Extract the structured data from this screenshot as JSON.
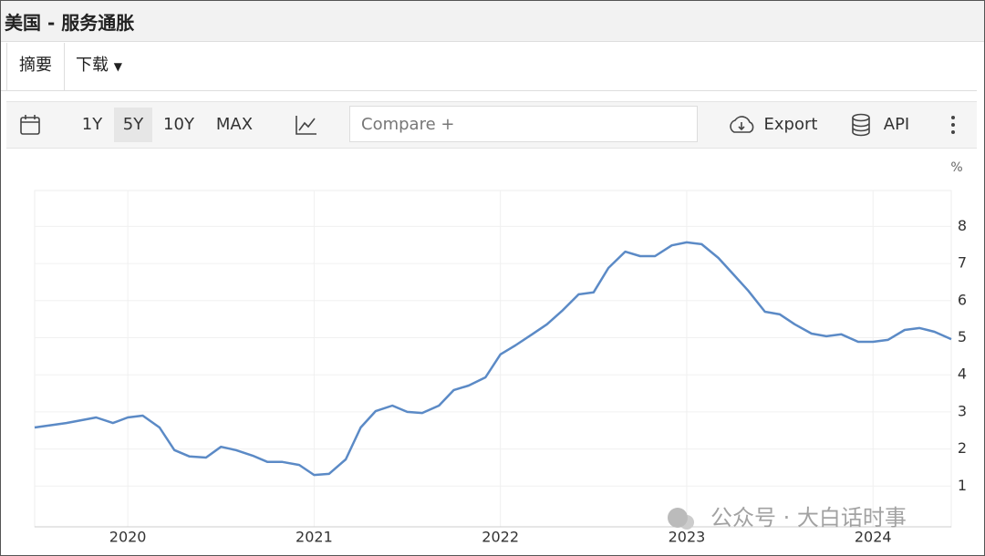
{
  "header": {
    "title": "美国 - 服务通胀"
  },
  "tabs": [
    "摘要",
    "下载"
  ],
  "toolbar": {
    "ranges": [
      "1Y",
      "5Y",
      "10Y",
      "MAX"
    ],
    "compare": "Compare +",
    "export": "Export",
    "api": "API"
  },
  "watermark": "公众号 · 大白话时事",
  "chart_data": {
    "type": "line",
    "unit": "%",
    "x": [
      2019.5,
      2019.67,
      2019.83,
      2019.92,
      2020.0,
      2020.08,
      2020.17,
      2020.25,
      2020.33,
      2020.42,
      2020.5,
      2020.58,
      2020.67,
      2020.75,
      2020.83,
      2020.92,
      2021.0,
      2021.08,
      2021.17,
      2021.25,
      2021.33,
      2021.42,
      2021.5,
      2021.58,
      2021.67,
      2021.75,
      2021.83,
      2021.92,
      2022.0,
      2022.08,
      2022.17,
      2022.25,
      2022.33,
      2022.42,
      2022.5,
      2022.58,
      2022.67,
      2022.75,
      2022.83,
      2022.92,
      2023.0,
      2023.08,
      2023.17,
      2023.25,
      2023.33,
      2023.42,
      2023.5,
      2023.58,
      2023.67,
      2023.75,
      2023.83,
      2023.92,
      2024.0,
      2024.08,
      2024.17,
      2024.25,
      2024.33,
      2024.42
    ],
    "series": [
      {
        "name": "服务通胀",
        "color": "#5b8ac6",
        "values": [
          2.58,
          2.7,
          2.85,
          2.7,
          2.85,
          2.9,
          2.58,
          1.97,
          1.8,
          1.77,
          2.06,
          1.97,
          1.82,
          1.65,
          1.65,
          1.57,
          1.3,
          1.33,
          1.72,
          2.58,
          3.02,
          3.17,
          3.0,
          2.97,
          3.17,
          3.59,
          3.71,
          3.93,
          4.55,
          4.79,
          5.09,
          5.36,
          5.72,
          6.17,
          6.22,
          6.88,
          7.32,
          7.2,
          7.2,
          7.49,
          7.57,
          7.52,
          7.15,
          6.71,
          6.27,
          5.7,
          5.63,
          5.36,
          5.11,
          5.04,
          5.09,
          4.89,
          4.89,
          4.94,
          5.21,
          5.26,
          5.16,
          4.96
        ]
      }
    ],
    "xlim": [
      2019.5,
      2024.42
    ],
    "xticks": [
      2020,
      2021,
      2022,
      2023,
      2024
    ],
    "ylim": [
      0,
      9
    ],
    "yticks": [
      1,
      2,
      3,
      4,
      5,
      6,
      7,
      8
    ],
    "grid": true
  }
}
